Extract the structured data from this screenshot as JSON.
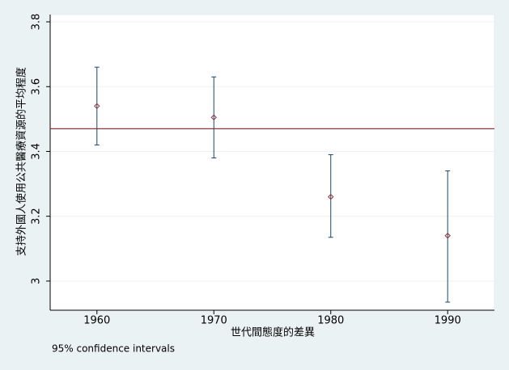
{
  "chart_data": {
    "type": "errorbar",
    "x_label": "世代間態度的差異",
    "y_label": "支持外國人使用公共醫療資源的平均程度",
    "note": "95% confidence intervals",
    "x": [
      1960,
      1970,
      1980,
      1990
    ],
    "series": [
      {
        "color": "#90353b",
        "bar_color": "#1a476f",
        "values": [
          3.54,
          3.505,
          3.26,
          3.14
        ],
        "lower": [
          3.42,
          3.38,
          3.135,
          2.935
        ],
        "upper": [
          3.66,
          3.63,
          3.39,
          3.34
        ]
      }
    ],
    "hline": 3.47,
    "hline_color": "#90353b",
    "xlim": [
      1956,
      1994
    ],
    "xticks": [
      1960,
      1970,
      1980,
      1990
    ],
    "ylim": [
      2.91,
      3.8225
    ],
    "yticks": [
      3,
      {
        "value": 3.2,
        "label": "3.2"
      },
      {
        "value": 3.4,
        "label": "3.4"
      },
      {
        "value": 3.6,
        "label": "3.6"
      },
      {
        "value": 3.8,
        "label": "3.8"
      }
    ],
    "grid": true
  }
}
